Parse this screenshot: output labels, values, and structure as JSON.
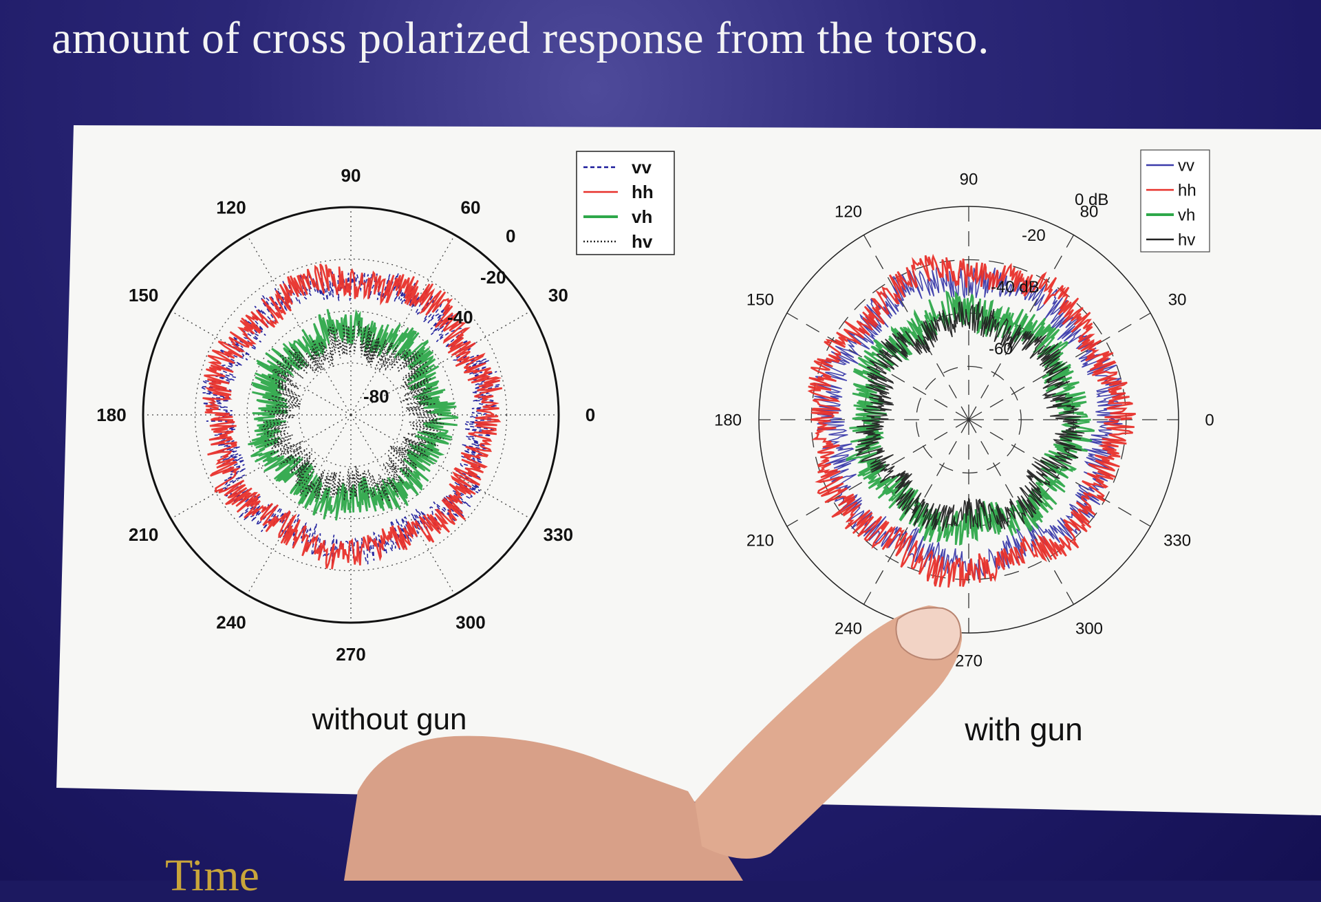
{
  "slide": {
    "caption_line": "amount of cross polarized response from the torso.",
    "bottom_fragment": "Time"
  },
  "chart_data": [
    {
      "type": "polar-line",
      "caption": "without gun",
      "angle_labels": [
        "0",
        "30",
        "60",
        "90",
        "120",
        "150",
        "180",
        "210",
        "240",
        "270",
        "300",
        "330"
      ],
      "radial_labels": [
        "0",
        "-20",
        "-40",
        "-80"
      ],
      "radial_range_db": [
        -80,
        0
      ],
      "legend": [
        "vv",
        "hh",
        "vh",
        "hv"
      ],
      "legend_position": "top-right",
      "series": [
        {
          "name": "vv",
          "color": "#1a1a9a",
          "style": "dashed",
          "mean_db": -29,
          "amplitude_db": 6
        },
        {
          "name": "hh",
          "color": "#e8302a",
          "style": "solid",
          "mean_db": -28,
          "amplitude_db": 6
        },
        {
          "name": "vh",
          "color": "#2ea84a",
          "style": "solid",
          "mean_db": -47,
          "amplitude_db": 7
        },
        {
          "name": "hv",
          "color": "#222222",
          "style": "dotted",
          "mean_db": -52,
          "amplitude_db": 7
        }
      ],
      "colors": {
        "vv": "#1a1a9a",
        "hh": "#e8302a",
        "vh": "#2ea84a",
        "hv": "#222222"
      }
    },
    {
      "type": "polar-line",
      "caption": "with gun",
      "angle_labels": [
        "0",
        "30",
        "80",
        "90",
        "120",
        "150",
        "180",
        "210",
        "240",
        "270",
        "300",
        "330"
      ],
      "radial_labels": [
        "0 dB",
        "-20",
        "-40 dB",
        "-60"
      ],
      "radial_range_db": [
        -80,
        0
      ],
      "legend": [
        "vv",
        "hh",
        "vh",
        "hv"
      ],
      "legend_position": "top-right",
      "series": [
        {
          "name": "vv",
          "color": "#3a3aaa",
          "style": "solid",
          "mean_db": -27,
          "amplitude_db": 6
        },
        {
          "name": "hh",
          "color": "#e8302a",
          "style": "solid",
          "mean_db": -24,
          "amplitude_db": 6
        },
        {
          "name": "vh",
          "color": "#2ea84a",
          "style": "solid",
          "mean_db": -40,
          "amplitude_db": 7
        },
        {
          "name": "hv",
          "color": "#222222",
          "style": "solid",
          "mean_db": -43,
          "amplitude_db": 6
        }
      ],
      "colors": {
        "vv": "#3a3aaa",
        "hh": "#e8302a",
        "vh": "#2ea84a",
        "hv": "#222222"
      }
    }
  ]
}
